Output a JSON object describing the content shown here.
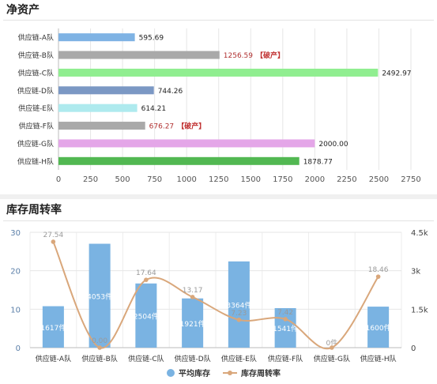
{
  "chart_data": [
    {
      "type": "bar",
      "orientation": "horizontal",
      "title": "净资产",
      "categories": [
        "供应链-A队",
        "供应链-B队",
        "供应链-C队",
        "供应链-D队",
        "供应链-E队",
        "供应链-F队",
        "供应链-G队",
        "供应链-H队"
      ],
      "values": [
        595.69,
        1256.59,
        2492.97,
        744.26,
        614.21,
        676.27,
        2000.0,
        1878.77
      ],
      "value_labels": [
        "595.69",
        "1256.59",
        "2492.97",
        "744.26",
        "614.21",
        "676.27",
        "2000.00",
        "1878.77"
      ],
      "annotations": [
        "",
        "【破产】",
        "",
        "",
        "",
        "【破产】",
        "",
        ""
      ],
      "bar_colors": [
        "#7fb3e4",
        "#a9a9a9",
        "#90ee90",
        "#7b98c4",
        "#aeeaee",
        "#a9a9a9",
        "#e4a6e8",
        "#52b852"
      ],
      "value_label_colors": [
        "#222222",
        "#b03030",
        "#222222",
        "#222222",
        "#222222",
        "#b03030",
        "#222222",
        "#222222"
      ],
      "annotation_color": "#c03030",
      "xticks": [
        "0",
        "250",
        "500",
        "750",
        "1000",
        "1250",
        "1500",
        "1750",
        "2000",
        "2250",
        "2500",
        "2750"
      ],
      "xlim": [
        0,
        2750
      ],
      "grid": true
    },
    {
      "type": "bar",
      "combo": "bar+line",
      "title": "库存周转率",
      "categories": [
        "供应链-A队",
        "供应链-B队",
        "供应链-C队",
        "供应链-D队",
        "供应链-E队",
        "供应链-F队",
        "供应链-G队",
        "供应链-H队"
      ],
      "series": [
        {
          "name": "平均库存",
          "type": "bar",
          "axis": "right",
          "values": [
            1617,
            4053,
            2504,
            1921,
            3364,
            1541,
            0,
            1600
          ],
          "labels": [
            "1617件",
            "4053件",
            "2504件",
            "1921件",
            "3364件",
            "1541件",
            "0件",
            "1600件"
          ],
          "color": "#7ab3e2"
        },
        {
          "name": "库存周转率",
          "type": "line",
          "axis": "left",
          "smooth": true,
          "values": [
            27.54,
            0.0,
            17.64,
            13.17,
            7.23,
            7.42,
            0.0,
            18.46
          ],
          "labels": [
            "27.54",
            "0.00",
            "17.64",
            "13.17",
            "7.23",
            "7.42",
            "",
            "18.46"
          ],
          "color": "#d9a77b"
        }
      ],
      "left_ticks": [
        "0",
        "10",
        "20",
        "30"
      ],
      "left_lim": [
        0,
        30
      ],
      "right_ticks": [
        "0",
        "1.5k",
        "3k",
        "4.5k"
      ],
      "right_lim": [
        0,
        4500
      ],
      "legend_position": "bottom",
      "grid": true
    }
  ]
}
